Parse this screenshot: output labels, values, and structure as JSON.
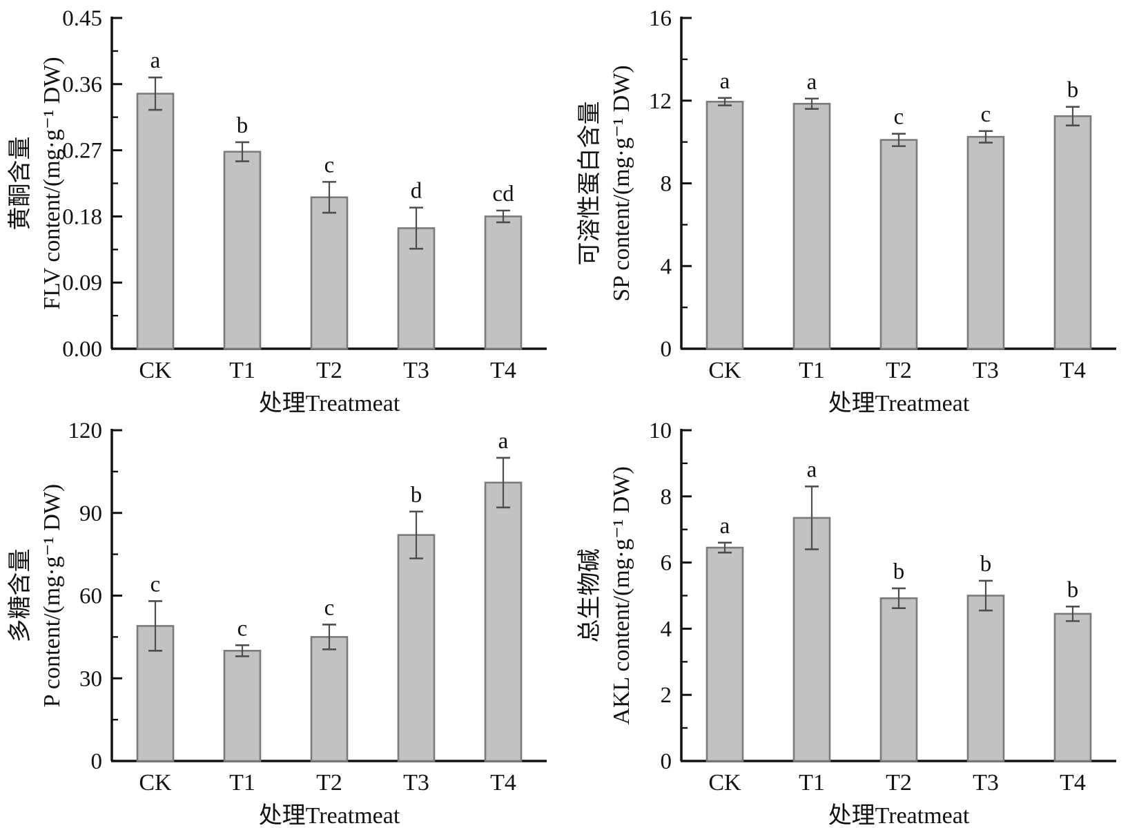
{
  "figure": {
    "background": "#ffffff",
    "grid": "2x2",
    "description_visible_text_only": true
  },
  "style": {
    "bar_fill": "#c2c2c2",
    "bar_stroke": "#7a7a7a",
    "error_bar_color": "#4d4d4d",
    "axis_color": "#111111",
    "text_color": "#111111"
  },
  "chart_data": [
    {
      "type": "bar",
      "title": "",
      "xlabel": "处理Treatmeat",
      "ylabel_line1": "黄酮含量",
      "ylabel_line2": "FLV content/(mg·g⁻¹ DW)",
      "ylim": [
        0,
        0.45
      ],
      "ytick_step": 0.09,
      "yminor_step": 0.045,
      "ytick_decimals": 2,
      "grid": false,
      "legend": null,
      "categories": [
        "CK",
        "T1",
        "T2",
        "T3",
        "T4"
      ],
      "values": [
        0.347,
        0.268,
        0.206,
        0.164,
        0.18
      ],
      "errors": [
        0.022,
        0.013,
        0.021,
        0.028,
        0.008
      ],
      "sig_letters": [
        "a",
        "b",
        "c",
        "d",
        "cd"
      ]
    },
    {
      "type": "bar",
      "title": "",
      "xlabel": "处理Treatmeat",
      "ylabel_line1": "可溶性蛋白含量",
      "ylabel_line2": "SP content/(mg·g⁻¹ DW)",
      "ylim": [
        0,
        16
      ],
      "ytick_step": 4,
      "yminor_step": 2,
      "ytick_decimals": 0,
      "grid": false,
      "legend": null,
      "categories": [
        "CK",
        "T1",
        "T2",
        "T3",
        "T4"
      ],
      "values": [
        11.95,
        11.85,
        10.1,
        10.25,
        11.25
      ],
      "errors": [
        0.18,
        0.25,
        0.3,
        0.28,
        0.45
      ],
      "sig_letters": [
        "a",
        "a",
        "c",
        "c",
        "b"
      ]
    },
    {
      "type": "bar",
      "title": "",
      "xlabel": "处理Treatmeat",
      "ylabel_line1": "多糖含量",
      "ylabel_line2": "P content/(mg·g⁻¹ DW)",
      "ylim": [
        0,
        120
      ],
      "ytick_step": 30,
      "yminor_step": 15,
      "ytick_decimals": 0,
      "grid": false,
      "legend": null,
      "categories": [
        "CK",
        "T1",
        "T2",
        "T3",
        "T4"
      ],
      "values": [
        49,
        40,
        45,
        82,
        101
      ],
      "errors": [
        9,
        2,
        4.5,
        8.5,
        9
      ],
      "sig_letters": [
        "c",
        "c",
        "c",
        "b",
        "a"
      ]
    },
    {
      "type": "bar",
      "title": "",
      "xlabel": "处理Treatmeat",
      "ylabel_line1": "总生物碱",
      "ylabel_line2": "AKL content/(mg·g⁻¹ DW)",
      "ylim": [
        0,
        10
      ],
      "ytick_step": 2,
      "yminor_step": 1,
      "ytick_decimals": 0,
      "grid": false,
      "legend": null,
      "categories": [
        "CK",
        "T1",
        "T2",
        "T3",
        "T4"
      ],
      "values": [
        6.45,
        7.35,
        4.92,
        5.0,
        4.45
      ],
      "errors": [
        0.15,
        0.95,
        0.3,
        0.45,
        0.22
      ],
      "sig_letters": [
        "a",
        "a",
        "b",
        "b",
        "b"
      ]
    }
  ]
}
